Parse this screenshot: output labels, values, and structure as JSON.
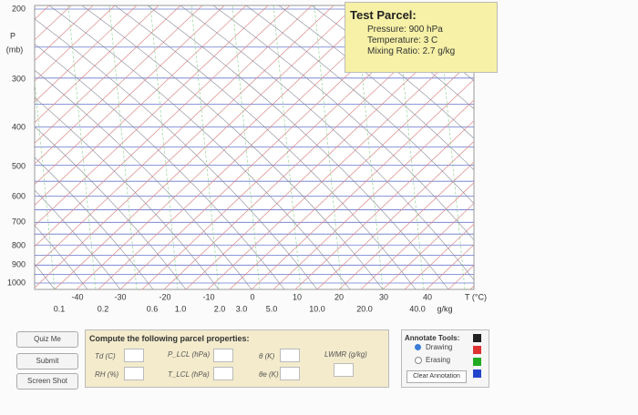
{
  "diagram": {
    "pressure_label": "P",
    "pressure_unit": "(mb)",
    "pressure_ticks": [
      "200",
      "300",
      "400",
      "500",
      "600",
      "700",
      "800",
      "900",
      "1000"
    ],
    "temperature_ticks": [
      "-40",
      "-30",
      "-20",
      "-10",
      "0",
      "10",
      "20",
      "30",
      "40"
    ],
    "temperature_unit": "T (°C)",
    "mixing_ticks": [
      "0.1",
      "0.2",
      "0.6",
      "1.0",
      "2.0",
      "3.0",
      "5.0",
      "10.0",
      "20.0",
      "40.0"
    ],
    "mixing_unit": "g/kg"
  },
  "test_parcel": {
    "title": "Test Parcel:",
    "lines": [
      "Pressure: 900 hPa",
      "Temperature: 3 C",
      "Mixing Ratio: 2.7 g/kg"
    ]
  },
  "buttons": [
    "Quiz Me",
    "Submit",
    "Screen Shot"
  ],
  "compute": {
    "title": "Compute the following parcel properties:",
    "fields": [
      "Td (C)",
      "RH (%)",
      "P_LCL (hPa)",
      "T_LCL (hPa)",
      "θ (K)",
      "θe (K)",
      "LWMR (g/kg)"
    ]
  },
  "annotate": {
    "title": "Annotate Tools:",
    "options": [
      "Drawing",
      "Erasing"
    ],
    "clear": "Clear Annotation"
  }
}
